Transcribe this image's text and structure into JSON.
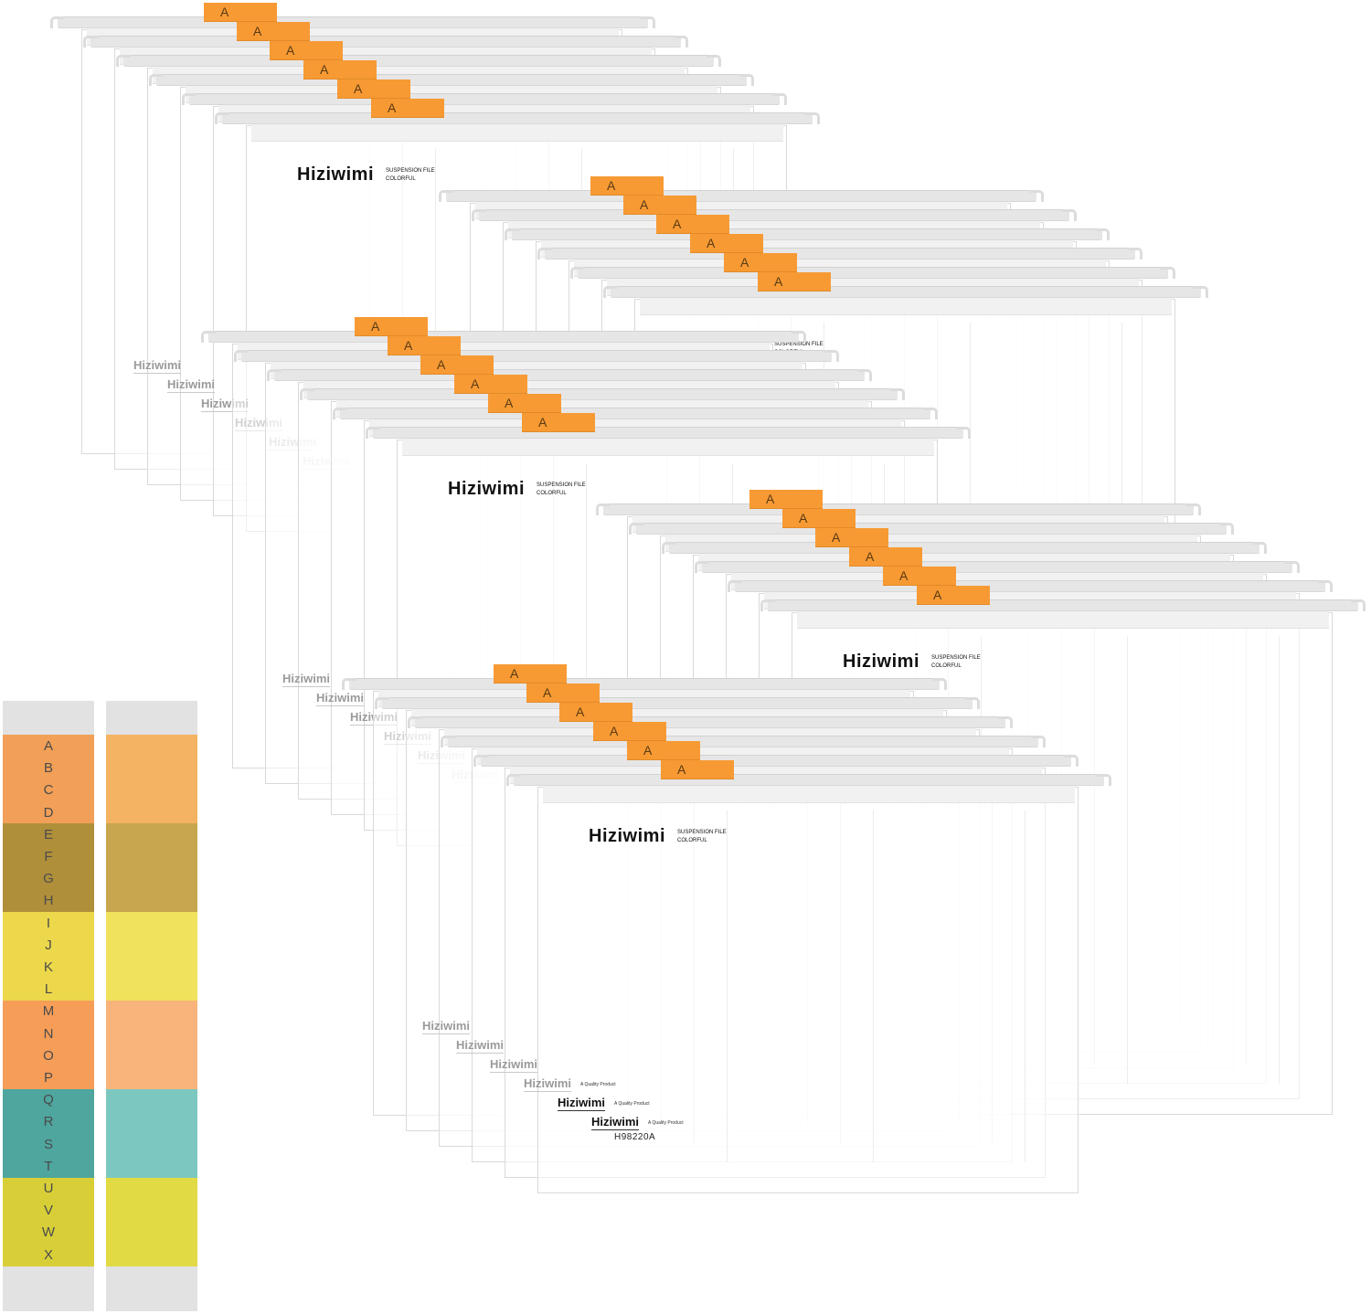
{
  "tab_letter": "A",
  "brand": {
    "name": "Hiziwimi",
    "line1": "SUSPENSION FILE",
    "line2": "COLORFUL",
    "tagline": "A Quality Product",
    "product_code": "H98220A"
  },
  "index_strip": {
    "letters": [
      "A",
      "B",
      "C",
      "D",
      "E",
      "F",
      "G",
      "H",
      "I",
      "J",
      "K",
      "L",
      "M",
      "N",
      "O",
      "P",
      "Q",
      "R",
      "S",
      "T",
      "U",
      "V",
      "W",
      "X"
    ],
    "bands": [
      {
        "color_left": "#f2a057",
        "color_right": "#f4b263"
      },
      {
        "color_left": "#b08f3b",
        "color_right": "#c7a64e"
      },
      {
        "color_left": "#ecd84a",
        "color_right": "#f0e25c"
      },
      {
        "color_left": "#f69d58",
        "color_right": "#f8b47a"
      },
      {
        "color_left": "#4ea69f",
        "color_right": "#7cc8c0"
      },
      {
        "color_left": "#d8cf38",
        "color_right": "#e2da44"
      }
    ]
  },
  "colors": {
    "tab": "#f79a34",
    "frame": "#e6e6e6"
  }
}
